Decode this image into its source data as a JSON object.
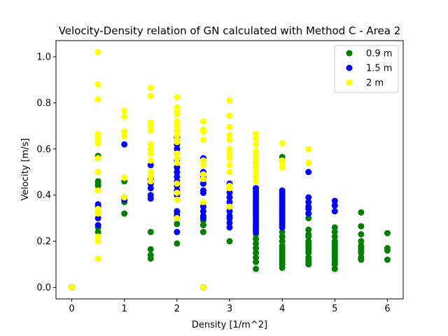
{
  "chart_data": {
    "type": "scatter",
    "title": "Velocity-Density relation of GN calculated with Method C - Area 2",
    "xlabel": "Density [1/m^2]",
    "ylabel": "Velocity [m/s]",
    "xlim": [
      -0.3,
      6.3
    ],
    "ylim": [
      -0.05,
      1.07
    ],
    "xticks": [
      0,
      1,
      2,
      3,
      4,
      5,
      6
    ],
    "yticks": [
      0.0,
      0.2,
      0.4,
      0.6,
      0.8,
      1.0
    ],
    "xtick_labels": [
      "0",
      "1",
      "2",
      "3",
      "4",
      "5",
      "6"
    ],
    "ytick_labels": [
      "0.0",
      "0.2",
      "0.4",
      "0.6",
      "0.8",
      "1.0"
    ],
    "grid": false,
    "legend_position": "top-right",
    "series": [
      {
        "name": "0.9 m",
        "color": "#008000",
        "points": [
          [
            0,
            0.0
          ],
          [
            0.5,
            0.57
          ],
          [
            0.5,
            0.56
          ],
          [
            0.5,
            0.46
          ],
          [
            0.5,
            0.45
          ],
          [
            0.5,
            0.44
          ],
          [
            0.5,
            0.26
          ],
          [
            0.5,
            0.24
          ],
          [
            1,
            0.46
          ],
          [
            1,
            0.37
          ],
          [
            1,
            0.32
          ],
          [
            1.5,
            0.24
          ],
          [
            1.5,
            0.165
          ],
          [
            1.5,
            0.14
          ],
          [
            1.5,
            0.125
          ],
          [
            2,
            0.32
          ],
          [
            2,
            0.3
          ],
          [
            2,
            0.275
          ],
          [
            2,
            0.19
          ],
          [
            2.5,
            0.29
          ],
          [
            2.5,
            0.27
          ],
          [
            2.5,
            0.24
          ],
          [
            2.5,
            0.0
          ],
          [
            3,
            0.2
          ],
          [
            3.5,
            0.23
          ],
          [
            3.5,
            0.21
          ],
          [
            3.5,
            0.19
          ],
          [
            3.5,
            0.17
          ],
          [
            3.5,
            0.15
          ],
          [
            3.5,
            0.13
          ],
          [
            3.5,
            0.11
          ],
          [
            3.5,
            0.08
          ],
          [
            4,
            0.565
          ],
          [
            4,
            0.55
          ],
          [
            4,
            0.24
          ],
          [
            4,
            0.22
          ],
          [
            4,
            0.2
          ],
          [
            4,
            0.18
          ],
          [
            4,
            0.17
          ],
          [
            4,
            0.16
          ],
          [
            4,
            0.15
          ],
          [
            4,
            0.14
          ],
          [
            4,
            0.13
          ],
          [
            4,
            0.12
          ],
          [
            4,
            0.11
          ],
          [
            4,
            0.1
          ],
          [
            4,
            0.085
          ],
          [
            4.5,
            0.3
          ],
          [
            4.5,
            0.25
          ],
          [
            4.5,
            0.23
          ],
          [
            4.5,
            0.22
          ],
          [
            4.5,
            0.2
          ],
          [
            4.5,
            0.19
          ],
          [
            4.5,
            0.18
          ],
          [
            4.5,
            0.17
          ],
          [
            4.5,
            0.16
          ],
          [
            4.5,
            0.15
          ],
          [
            4.5,
            0.13
          ],
          [
            4.5,
            0.12
          ],
          [
            4.5,
            0.11
          ],
          [
            4.5,
            0.1
          ],
          [
            5,
            0.26
          ],
          [
            5,
            0.24
          ],
          [
            5,
            0.22
          ],
          [
            5,
            0.2
          ],
          [
            5,
            0.19
          ],
          [
            5,
            0.18
          ],
          [
            5,
            0.17
          ],
          [
            5,
            0.16
          ],
          [
            5,
            0.15
          ],
          [
            5,
            0.14
          ],
          [
            5,
            0.13
          ],
          [
            5,
            0.12
          ],
          [
            5,
            0.11
          ],
          [
            5,
            0.1
          ],
          [
            5,
            0.08
          ],
          [
            5.5,
            0.325
          ],
          [
            5.5,
            0.265
          ],
          [
            5.5,
            0.23
          ],
          [
            5.5,
            0.2
          ],
          [
            5.5,
            0.18
          ],
          [
            5.5,
            0.17
          ],
          [
            5.5,
            0.16
          ],
          [
            5.5,
            0.15
          ],
          [
            5.5,
            0.13
          ],
          [
            5.5,
            0.12
          ],
          [
            6,
            0.235
          ],
          [
            6,
            0.17
          ],
          [
            6,
            0.16
          ],
          [
            6,
            0.12
          ]
        ]
      },
      {
        "name": "1.5 m",
        "color": "#0000ff",
        "points": [
          [
            0,
            0.0
          ],
          [
            0.5,
            0.36
          ],
          [
            0.5,
            0.35
          ],
          [
            0.5,
            0.33
          ],
          [
            0.5,
            0.3
          ],
          [
            0.5,
            0.27
          ],
          [
            1,
            0.62
          ],
          [
            1,
            0.39
          ],
          [
            1,
            0.38
          ],
          [
            1.5,
            0.53
          ],
          [
            1.5,
            0.47
          ],
          [
            1.5,
            0.45
          ],
          [
            1.5,
            0.43
          ],
          [
            1.5,
            0.4
          ],
          [
            1.5,
            0.385
          ],
          [
            2,
            0.68
          ],
          [
            2,
            0.65
          ],
          [
            2,
            0.62
          ],
          [
            2,
            0.6
          ],
          [
            2,
            0.58
          ],
          [
            2,
            0.55
          ],
          [
            2,
            0.52
          ],
          [
            2,
            0.5
          ],
          [
            2,
            0.48
          ],
          [
            2,
            0.46
          ],
          [
            2,
            0.44
          ],
          [
            2,
            0.42
          ],
          [
            2,
            0.4
          ],
          [
            2,
            0.33
          ],
          [
            2,
            0.31
          ],
          [
            2,
            0.24
          ],
          [
            2.5,
            0.56
          ],
          [
            2.5,
            0.5
          ],
          [
            2.5,
            0.48
          ],
          [
            2.5,
            0.45
          ],
          [
            2.5,
            0.42
          ],
          [
            2.5,
            0.41
          ],
          [
            2.5,
            0.35
          ],
          [
            2.5,
            0.33
          ],
          [
            2.5,
            0.31
          ],
          [
            2.5,
            0.3
          ],
          [
            2.5,
            0.0
          ],
          [
            3,
            0.45
          ],
          [
            3,
            0.43
          ],
          [
            3,
            0.41
          ],
          [
            3,
            0.39
          ],
          [
            3,
            0.37
          ],
          [
            3,
            0.35
          ],
          [
            3,
            0.33
          ],
          [
            3,
            0.31
          ],
          [
            3,
            0.3
          ],
          [
            3,
            0.28
          ],
          [
            3,
            0.26
          ],
          [
            3.5,
            0.54
          ],
          [
            3.5,
            0.43
          ],
          [
            3.5,
            0.42
          ],
          [
            3.5,
            0.41
          ],
          [
            3.5,
            0.4
          ],
          [
            3.5,
            0.39
          ],
          [
            3.5,
            0.38
          ],
          [
            3.5,
            0.37
          ],
          [
            3.5,
            0.36
          ],
          [
            3.5,
            0.35
          ],
          [
            3.5,
            0.34
          ],
          [
            3.5,
            0.33
          ],
          [
            3.5,
            0.32
          ],
          [
            3.5,
            0.31
          ],
          [
            3.5,
            0.3
          ],
          [
            3.5,
            0.29
          ],
          [
            3.5,
            0.28
          ],
          [
            3.5,
            0.27
          ],
          [
            3.5,
            0.26
          ],
          [
            3.5,
            0.25
          ],
          [
            3.5,
            0.24
          ],
          [
            4,
            0.42
          ],
          [
            4,
            0.41
          ],
          [
            4,
            0.4
          ],
          [
            4,
            0.39
          ],
          [
            4,
            0.38
          ],
          [
            4,
            0.37
          ],
          [
            4,
            0.36
          ],
          [
            4,
            0.35
          ],
          [
            4,
            0.34
          ],
          [
            4,
            0.33
          ],
          [
            4,
            0.32
          ],
          [
            4,
            0.31
          ],
          [
            4,
            0.3
          ],
          [
            4,
            0.29
          ],
          [
            4,
            0.28
          ],
          [
            4,
            0.27
          ],
          [
            4,
            0.26
          ],
          [
            4.5,
            0.5
          ],
          [
            4.5,
            0.39
          ],
          [
            4.5,
            0.37
          ],
          [
            4.5,
            0.35
          ],
          [
            4.5,
            0.34
          ],
          [
            4.5,
            0.32
          ],
          [
            5,
            0.375
          ],
          [
            5,
            0.355
          ],
          [
            5,
            0.33
          ]
        ]
      },
      {
        "name": "2 m",
        "color": "#ffff00",
        "points": [
          [
            0,
            0.0
          ],
          [
            0.5,
            1.02
          ],
          [
            0.5,
            0.88
          ],
          [
            0.5,
            0.815
          ],
          [
            0.5,
            0.665
          ],
          [
            0.5,
            0.65
          ],
          [
            0.5,
            0.64
          ],
          [
            0.5,
            0.625
          ],
          [
            0.5,
            0.56
          ],
          [
            0.5,
            0.5
          ],
          [
            0.5,
            0.42
          ],
          [
            0.5,
            0.34
          ],
          [
            0.5,
            0.33
          ],
          [
            0.5,
            0.32
          ],
          [
            0.5,
            0.22
          ],
          [
            0.5,
            0.2
          ],
          [
            0.5,
            0.125
          ],
          [
            1,
            0.765
          ],
          [
            1,
            0.74
          ],
          [
            1,
            0.675
          ],
          [
            1,
            0.665
          ],
          [
            1,
            0.655
          ],
          [
            1,
            0.475
          ],
          [
            1,
            0.39
          ],
          [
            1.5,
            0.865
          ],
          [
            1.5,
            0.83
          ],
          [
            1.5,
            0.715
          ],
          [
            1.5,
            0.7
          ],
          [
            1.5,
            0.68
          ],
          [
            1.5,
            0.62
          ],
          [
            1.5,
            0.6
          ],
          [
            1.5,
            0.58
          ],
          [
            1.5,
            0.55
          ],
          [
            1.5,
            0.5
          ],
          [
            1.5,
            0.48
          ],
          [
            1.5,
            0.46
          ],
          [
            2,
            0.825
          ],
          [
            2,
            0.78
          ],
          [
            2,
            0.765
          ],
          [
            2,
            0.75
          ],
          [
            2,
            0.72
          ],
          [
            2,
            0.7
          ],
          [
            2,
            0.68
          ],
          [
            2,
            0.66
          ],
          [
            2,
            0.64
          ],
          [
            2,
            0.63
          ],
          [
            2,
            0.58
          ],
          [
            2,
            0.56
          ],
          [
            2,
            0.54
          ],
          [
            2,
            0.45
          ],
          [
            2,
            0.41
          ],
          [
            2,
            0.38
          ],
          [
            2,
            0.3
          ],
          [
            2.5,
            0.72
          ],
          [
            2.5,
            0.685
          ],
          [
            2.5,
            0.675
          ],
          [
            2.5,
            0.64
          ],
          [
            2.5,
            0.55
          ],
          [
            2.5,
            0.53
          ],
          [
            2.5,
            0.49
          ],
          [
            2.5,
            0.47
          ],
          [
            2.5,
            0.37
          ],
          [
            2.5,
            0.0
          ],
          [
            3,
            0.81
          ],
          [
            3,
            0.745
          ],
          [
            3,
            0.695
          ],
          [
            3,
            0.66
          ],
          [
            3,
            0.64
          ],
          [
            3,
            0.6
          ],
          [
            3,
            0.58
          ],
          [
            3,
            0.56
          ],
          [
            3,
            0.53
          ],
          [
            3,
            0.5
          ],
          [
            3,
            0.44
          ],
          [
            3,
            0.43
          ],
          [
            3,
            0.35
          ],
          [
            3.5,
            0.665
          ],
          [
            3.5,
            0.645
          ],
          [
            3.5,
            0.62
          ],
          [
            3.5,
            0.59
          ],
          [
            3.5,
            0.58
          ],
          [
            3.5,
            0.56
          ],
          [
            3.5,
            0.54
          ],
          [
            3.5,
            0.52
          ],
          [
            3.5,
            0.5
          ],
          [
            3.5,
            0.48
          ],
          [
            3.5,
            0.46
          ],
          [
            4,
            0.625
          ],
          [
            4,
            0.55
          ],
          [
            4,
            0.54
          ],
          [
            4,
            0.52
          ],
          [
            4.5,
            0.6
          ],
          [
            4.5,
            0.54
          ]
        ]
      }
    ]
  }
}
